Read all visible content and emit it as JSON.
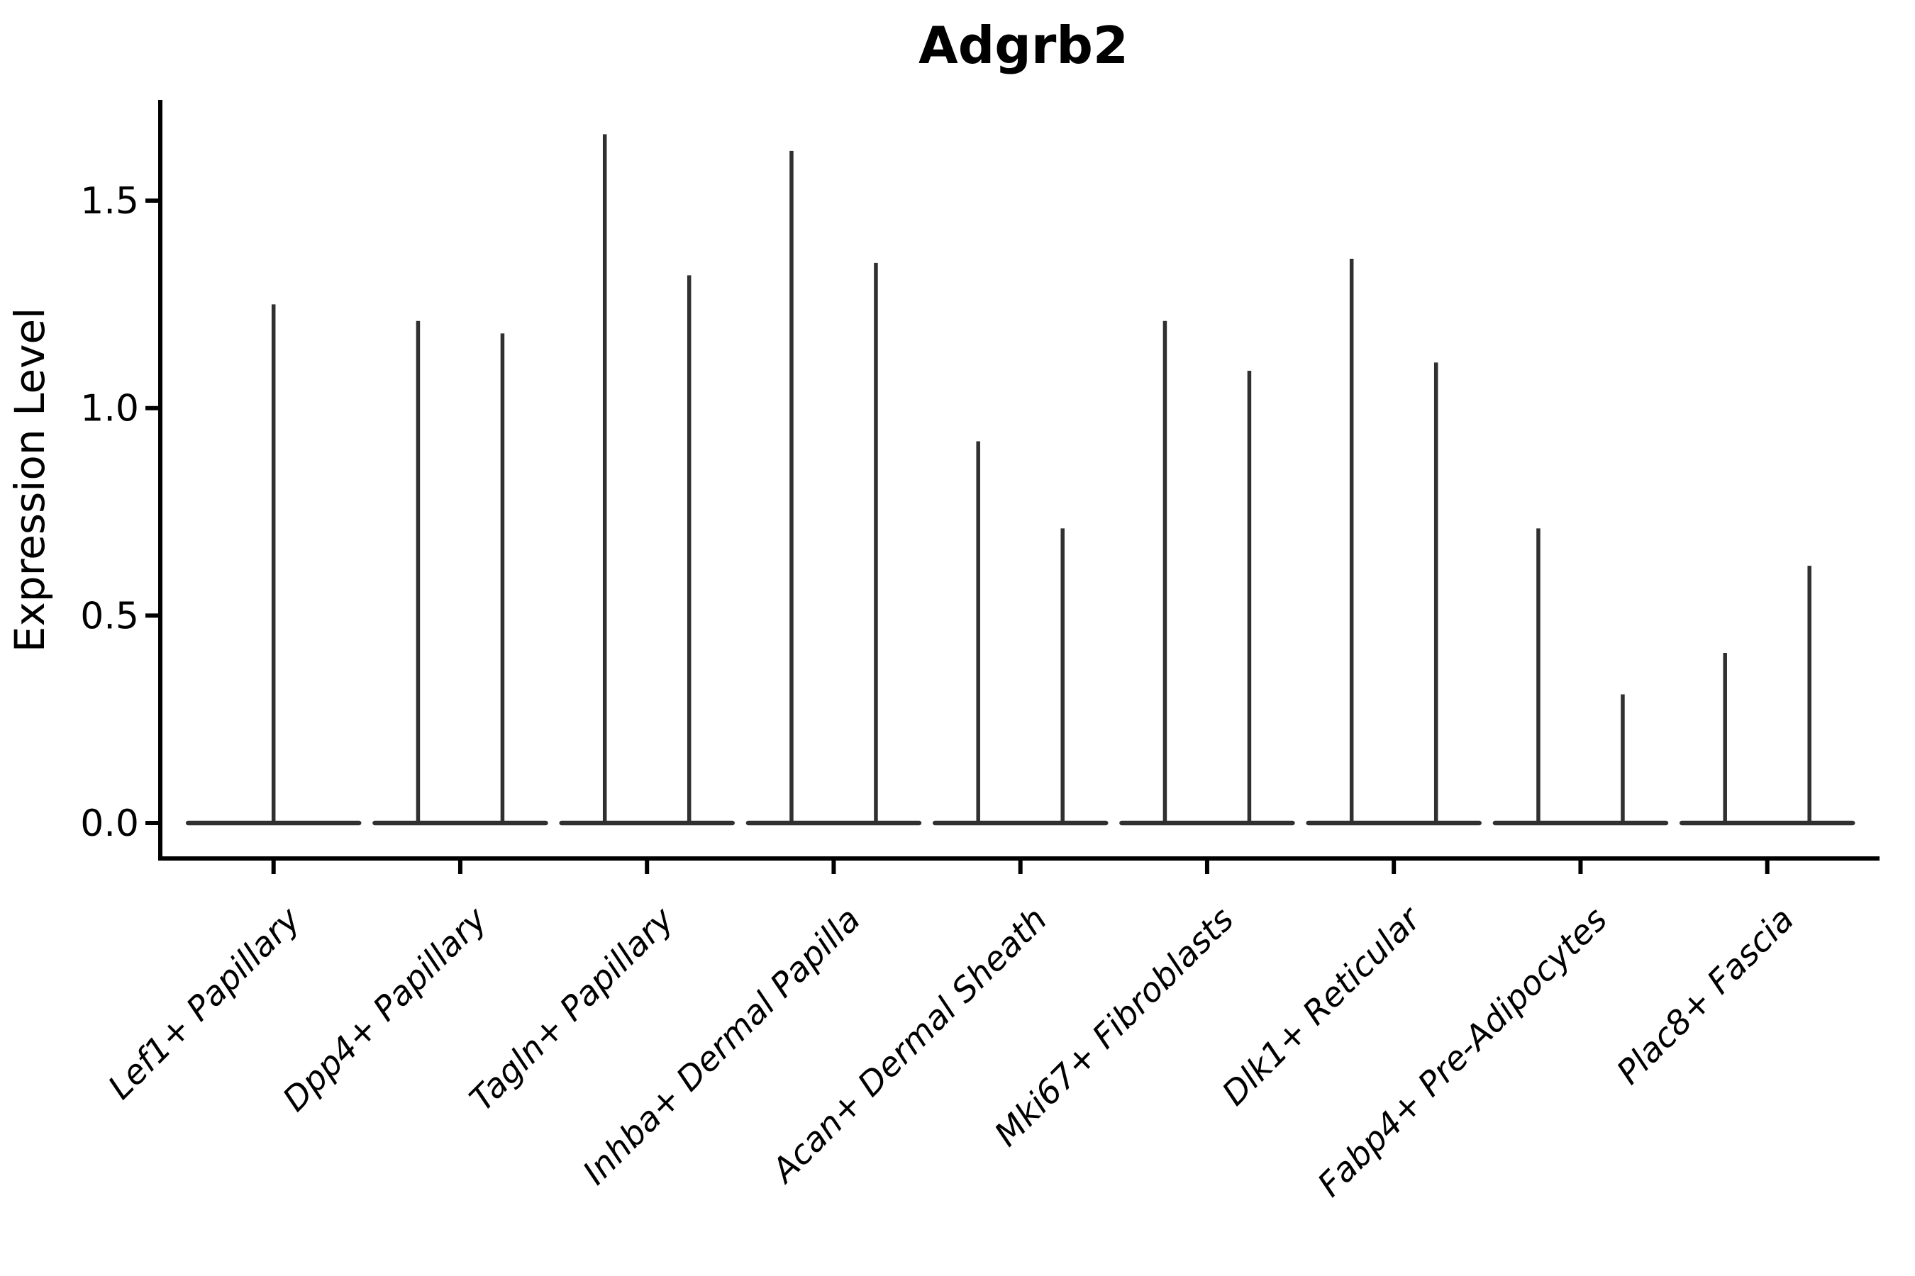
{
  "figure": {
    "title": "Adgrb2",
    "ylabel": "Expression Level"
  },
  "chart_data": {
    "type": "violin",
    "title": "Adgrb2",
    "xlabel": "",
    "ylabel": "Expression Level",
    "ylim": [
      0,
      1.78
    ],
    "yticks": [
      "0.0",
      "0.5",
      "1.0",
      "1.5"
    ],
    "ytick_values": [
      0.0,
      0.5,
      1.0,
      1.5
    ],
    "grid": false,
    "legend": "none",
    "style": "extremely thin violins: nearly all density at 0 (flat base line) with a narrow vertical spike up to the maximum expression; one violin for the first category, two side-by-side violins for all other categories",
    "categories": [
      "Lef1+ Papillary",
      "Dpp4+ Papillary",
      "Tagln+ Papillary",
      "Inhba+ Dermal Papilla",
      "Acan+ Dermal Sheath",
      "Mki67+ Fibroblasts",
      "Dlk1+ Reticular",
      "Fabp4+ Pre-Adipocytes",
      "Plac8+ Fascia"
    ],
    "violins": [
      {
        "category": "Lef1+ Papillary",
        "spike_maxima": [
          1.25
        ]
      },
      {
        "category": "Dpp4+ Papillary",
        "spike_maxima": [
          1.21,
          1.18
        ]
      },
      {
        "category": "Tagln+ Papillary",
        "spike_maxima": [
          1.66,
          1.32
        ]
      },
      {
        "category": "Inhba+ Dermal Papilla",
        "spike_maxima": [
          1.62,
          1.35
        ]
      },
      {
        "category": "Acan+ Dermal Sheath",
        "spike_maxima": [
          0.92,
          0.71
        ]
      },
      {
        "category": "Mki67+ Fibroblasts",
        "spike_maxima": [
          1.21,
          1.09
        ]
      },
      {
        "category": "Dlk1+ Reticular",
        "spike_maxima": [
          1.36,
          1.11
        ]
      },
      {
        "category": "Fabp4+ Pre-Adipocytes",
        "spike_maxima": [
          0.71,
          0.31
        ]
      },
      {
        "category": "Plac8+ Fascia",
        "spike_maxima": [
          0.41,
          0.62
        ]
      }
    ],
    "colors": {
      "violin_stroke": "#303030",
      "axis": "#000000",
      "text": "#000000",
      "background": "#ffffff"
    }
  }
}
